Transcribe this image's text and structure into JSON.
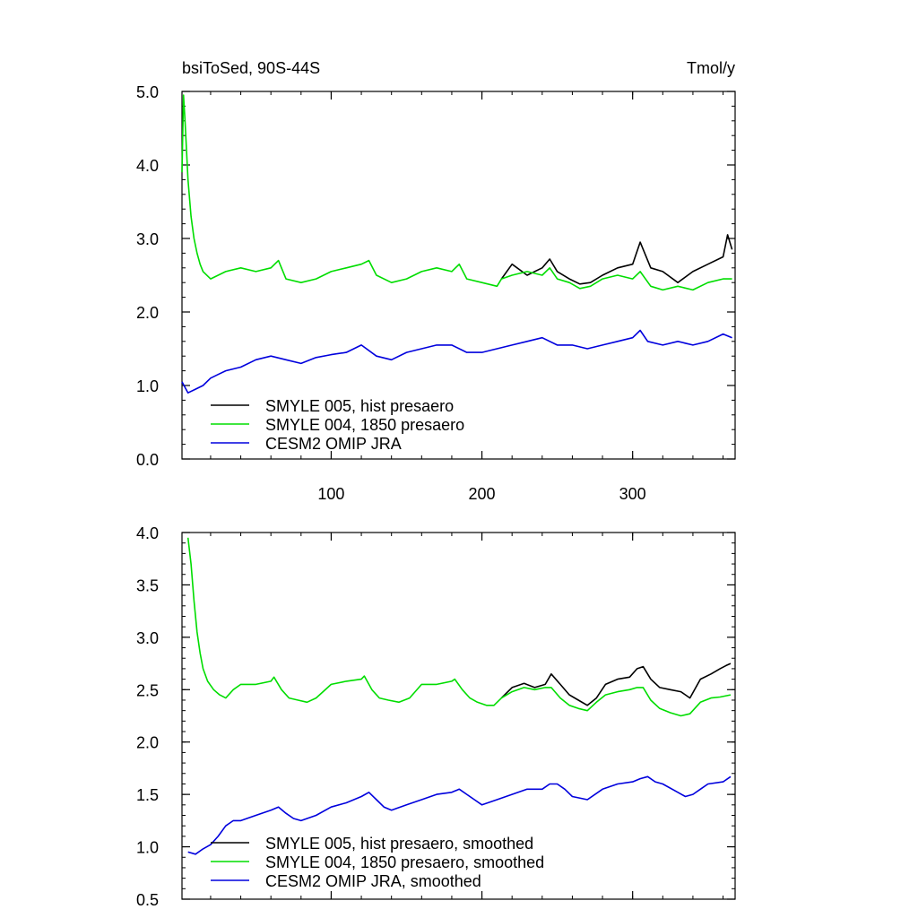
{
  "figure": {
    "title_left": "bsiToSed, 90S-44S",
    "title_right": "Tmol/y"
  },
  "chart_data": [
    {
      "type": "line",
      "panel": "top",
      "xlim": [
        1,
        368
      ],
      "ylim": [
        0.0,
        5.0
      ],
      "x_ticks": [
        100,
        200,
        300
      ],
      "x_tick_labels": [
        "100",
        "200",
        "300"
      ],
      "y_ticks": [
        0.0,
        1.0,
        2.0,
        3.0,
        4.0,
        5.0
      ],
      "y_tick_labels": [
        "0.0",
        "1.0",
        "2.0",
        "3.0",
        "4.0",
        "5.0"
      ],
      "legend_position": "bottom-left",
      "series": [
        {
          "name": "SMYLE 005, hist presaero",
          "color": "#000000",
          "x": [
            213,
            220,
            230,
            240,
            245,
            250,
            258,
            265,
            272,
            280,
            290,
            300,
            305,
            312,
            320,
            330,
            340,
            350,
            360,
            363,
            366
          ],
          "values": [
            2.45,
            2.65,
            2.5,
            2.6,
            2.72,
            2.55,
            2.45,
            2.38,
            2.4,
            2.5,
            2.6,
            2.65,
            2.95,
            2.6,
            2.55,
            2.4,
            2.55,
            2.65,
            2.75,
            3.05,
            2.85
          ]
        },
        {
          "name": "SMYLE 004, 1850 presaero",
          "color": "#00dd00",
          "x": [
            1,
            2,
            3,
            5,
            7,
            9,
            11,
            13,
            15,
            20,
            30,
            40,
            50,
            60,
            65,
            70,
            80,
            90,
            100,
            110,
            120,
            125,
            130,
            140,
            150,
            160,
            170,
            180,
            185,
            190,
            200,
            210,
            213,
            220,
            230,
            240,
            245,
            250,
            258,
            265,
            272,
            280,
            290,
            300,
            305,
            312,
            320,
            330,
            340,
            350,
            360,
            366
          ],
          "values": [
            3.9,
            4.95,
            4.6,
            3.8,
            3.3,
            3.0,
            2.8,
            2.65,
            2.55,
            2.45,
            2.55,
            2.6,
            2.55,
            2.6,
            2.7,
            2.45,
            2.4,
            2.45,
            2.55,
            2.6,
            2.65,
            2.7,
            2.5,
            2.4,
            2.45,
            2.55,
            2.6,
            2.55,
            2.65,
            2.45,
            2.4,
            2.35,
            2.45,
            2.5,
            2.55,
            2.5,
            2.6,
            2.45,
            2.4,
            2.32,
            2.35,
            2.45,
            2.5,
            2.45,
            2.55,
            2.35,
            2.3,
            2.35,
            2.3,
            2.4,
            2.45,
            2.45
          ]
        },
        {
          "name": "CESM2 OMIP JRA",
          "color": "#0000dd",
          "x": [
            1,
            5,
            10,
            15,
            20,
            25,
            30,
            40,
            50,
            60,
            70,
            80,
            90,
            100,
            110,
            120,
            130,
            140,
            150,
            160,
            170,
            180,
            190,
            200,
            210,
            220,
            230,
            240,
            250,
            260,
            270,
            280,
            290,
            300,
            305,
            310,
            320,
            330,
            340,
            350,
            360,
            366
          ],
          "values": [
            1.05,
            0.9,
            0.95,
            1.0,
            1.1,
            1.15,
            1.2,
            1.25,
            1.35,
            1.4,
            1.35,
            1.3,
            1.38,
            1.42,
            1.45,
            1.55,
            1.4,
            1.35,
            1.45,
            1.5,
            1.55,
            1.55,
            1.45,
            1.45,
            1.5,
            1.55,
            1.6,
            1.65,
            1.55,
            1.55,
            1.5,
            1.55,
            1.6,
            1.65,
            1.75,
            1.6,
            1.55,
            1.6,
            1.55,
            1.6,
            1.7,
            1.65
          ]
        }
      ]
    },
    {
      "type": "line",
      "panel": "bottom",
      "xlim": [
        1,
        368
      ],
      "ylim": [
        0.5,
        4.0
      ],
      "x_ticks": [
        100,
        200,
        300
      ],
      "y_ticks": [
        0.5,
        1.0,
        1.5,
        2.0,
        2.5,
        3.0,
        3.5,
        4.0
      ],
      "y_tick_labels": [
        "0.5",
        "1.0",
        "1.5",
        "2.0",
        "2.5",
        "3.0",
        "3.5",
        "4.0"
      ],
      "legend_position": "bottom-left",
      "series": [
        {
          "name": "SMYLE 005, hist presaero, smoothed",
          "color": "#000000",
          "x": [
            213,
            220,
            228,
            235,
            242,
            246,
            252,
            258,
            264,
            270,
            276,
            282,
            290,
            298,
            303,
            307,
            312,
            318,
            325,
            332,
            338,
            345,
            352,
            358,
            362,
            365
          ],
          "values": [
            2.42,
            2.52,
            2.56,
            2.52,
            2.55,
            2.65,
            2.55,
            2.45,
            2.4,
            2.35,
            2.42,
            2.55,
            2.6,
            2.62,
            2.7,
            2.72,
            2.6,
            2.52,
            2.5,
            2.48,
            2.42,
            2.6,
            2.65,
            2.7,
            2.73,
            2.75
          ]
        },
        {
          "name": "SMYLE 004, 1850 presaero, smoothed",
          "color": "#00dd00",
          "x": [
            5,
            7,
            9,
            11,
            13,
            15,
            18,
            22,
            26,
            30,
            35,
            40,
            50,
            60,
            62,
            67,
            72,
            78,
            84,
            90,
            100,
            110,
            120,
            122,
            127,
            132,
            138,
            145,
            152,
            160,
            170,
            180,
            182,
            187,
            192,
            197,
            203,
            208,
            213,
            220,
            228,
            235,
            242,
            246,
            252,
            258,
            264,
            270,
            276,
            282,
            290,
            298,
            303,
            307,
            312,
            318,
            325,
            332,
            338,
            345,
            352,
            358,
            365
          ],
          "values": [
            3.95,
            3.7,
            3.35,
            3.05,
            2.85,
            2.7,
            2.58,
            2.5,
            2.45,
            2.42,
            2.5,
            2.55,
            2.55,
            2.58,
            2.62,
            2.5,
            2.42,
            2.4,
            2.38,
            2.42,
            2.55,
            2.58,
            2.6,
            2.63,
            2.5,
            2.42,
            2.4,
            2.38,
            2.42,
            2.55,
            2.55,
            2.58,
            2.6,
            2.5,
            2.42,
            2.38,
            2.35,
            2.35,
            2.42,
            2.48,
            2.52,
            2.5,
            2.52,
            2.52,
            2.42,
            2.35,
            2.32,
            2.3,
            2.38,
            2.45,
            2.48,
            2.5,
            2.52,
            2.52,
            2.4,
            2.32,
            2.28,
            2.25,
            2.27,
            2.38,
            2.42,
            2.43,
            2.45
          ]
        },
        {
          "name": "CESM2 OMIP JRA, smoothed",
          "color": "#0000dd",
          "x": [
            5,
            10,
            15,
            20,
            25,
            30,
            35,
            40,
            50,
            60,
            65,
            70,
            75,
            80,
            90,
            100,
            110,
            120,
            125,
            130,
            135,
            140,
            150,
            160,
            170,
            180,
            185,
            190,
            195,
            200,
            210,
            220,
            230,
            240,
            245,
            250,
            255,
            260,
            270,
            280,
            290,
            300,
            305,
            310,
            315,
            320,
            330,
            335,
            340,
            345,
            350,
            360,
            365
          ],
          "values": [
            0.95,
            0.93,
            0.98,
            1.02,
            1.1,
            1.2,
            1.25,
            1.25,
            1.3,
            1.35,
            1.38,
            1.32,
            1.27,
            1.25,
            1.3,
            1.38,
            1.42,
            1.48,
            1.52,
            1.45,
            1.38,
            1.35,
            1.4,
            1.45,
            1.5,
            1.52,
            1.55,
            1.5,
            1.45,
            1.4,
            1.45,
            1.5,
            1.55,
            1.55,
            1.6,
            1.6,
            1.55,
            1.48,
            1.45,
            1.55,
            1.6,
            1.62,
            1.65,
            1.67,
            1.62,
            1.6,
            1.52,
            1.48,
            1.5,
            1.55,
            1.6,
            1.62,
            1.67
          ]
        }
      ]
    }
  ]
}
